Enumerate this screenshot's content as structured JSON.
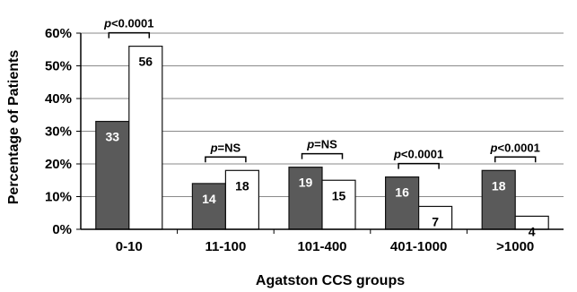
{
  "chart_data": {
    "type": "bar",
    "categories": [
      "0-10",
      "11-100",
      "101-400",
      "401-1000",
      ">1000"
    ],
    "series": [
      {
        "values": [
          33,
          14,
          19,
          16,
          18
        ],
        "color": "#5a5a5a"
      },
      {
        "values": [
          56,
          18,
          15,
          7,
          4
        ],
        "color": "#ffffff"
      }
    ],
    "data_labels": [
      [
        "33",
        "14",
        "19",
        "16",
        "18"
      ],
      [
        "56",
        "18",
        "15",
        "7",
        "4"
      ]
    ],
    "p_values": [
      {
        "prefix": "p",
        "rest": "<0.0001"
      },
      {
        "prefix": "p",
        "rest": "=NS"
      },
      {
        "prefix": "p",
        "rest": "=NS"
      },
      {
        "prefix": "p",
        "rest": "<0.0001"
      },
      {
        "prefix": "p",
        "rest": "<0.0001"
      }
    ],
    "xlabel": "Agatston CCS groups",
    "ylabel": "Percentage of Patients",
    "ylim": [
      0,
      60
    ],
    "yticks": [
      0,
      10,
      20,
      30,
      40,
      50,
      60
    ],
    "ytick_labels": [
      "0%",
      "10%",
      "20%",
      "30%",
      "40%",
      "50%",
      "60%"
    ],
    "grid": true,
    "legend": "none"
  }
}
